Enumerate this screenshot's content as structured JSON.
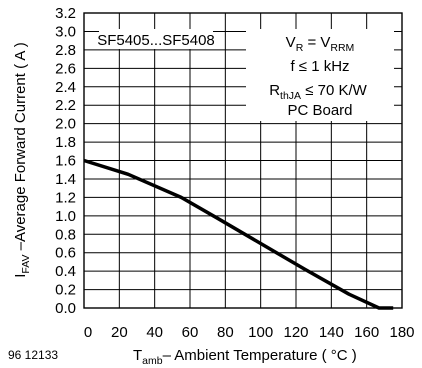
{
  "chart_data": {
    "type": "line",
    "title": "",
    "xlabel": {
      "main": "T",
      "sub": "amb",
      "rest": "– Ambient Temperature ( °C )"
    },
    "ylabel": {
      "main": "I",
      "sub": "FAV",
      "rest": " –Average Forward Current ( A )"
    },
    "xlim": [
      0,
      180
    ],
    "ylim": [
      0,
      3.2
    ],
    "grid": true,
    "x_ticks": [
      "0",
      "20",
      "40",
      "60",
      "80",
      "100",
      "120",
      "140",
      "160",
      "180"
    ],
    "y_ticks": [
      "0.0",
      "0.2",
      "0.4",
      "0.6",
      "0.8",
      "1.0",
      "1.2",
      "1.4",
      "1.6",
      "1.8",
      "2.0",
      "2.2",
      "2.4",
      "2.6",
      "2.8",
      "3.0",
      "3.2"
    ],
    "series": [
      {
        "x": [
          0,
          25,
          55,
          75,
          100,
          125,
          150,
          167,
          175
        ],
        "y": [
          1.6,
          1.45,
          1.2,
          0.98,
          0.7,
          0.42,
          0.15,
          0.0,
          0.0
        ]
      }
    ],
    "annotations": {
      "part_range": "SF5405...SF5408",
      "cond_vr": {
        "a": "V",
        "a_sub": "R",
        "mid": " = V",
        "b_sub": "RRM"
      },
      "cond_f": "f ≤ 1 kHz",
      "cond_rth": {
        "a": "R",
        "a_sub": "thJA",
        "rest": " ≤ 70 K/W"
      },
      "cond_board": "PC Board"
    },
    "doc_id": "96 12133"
  }
}
